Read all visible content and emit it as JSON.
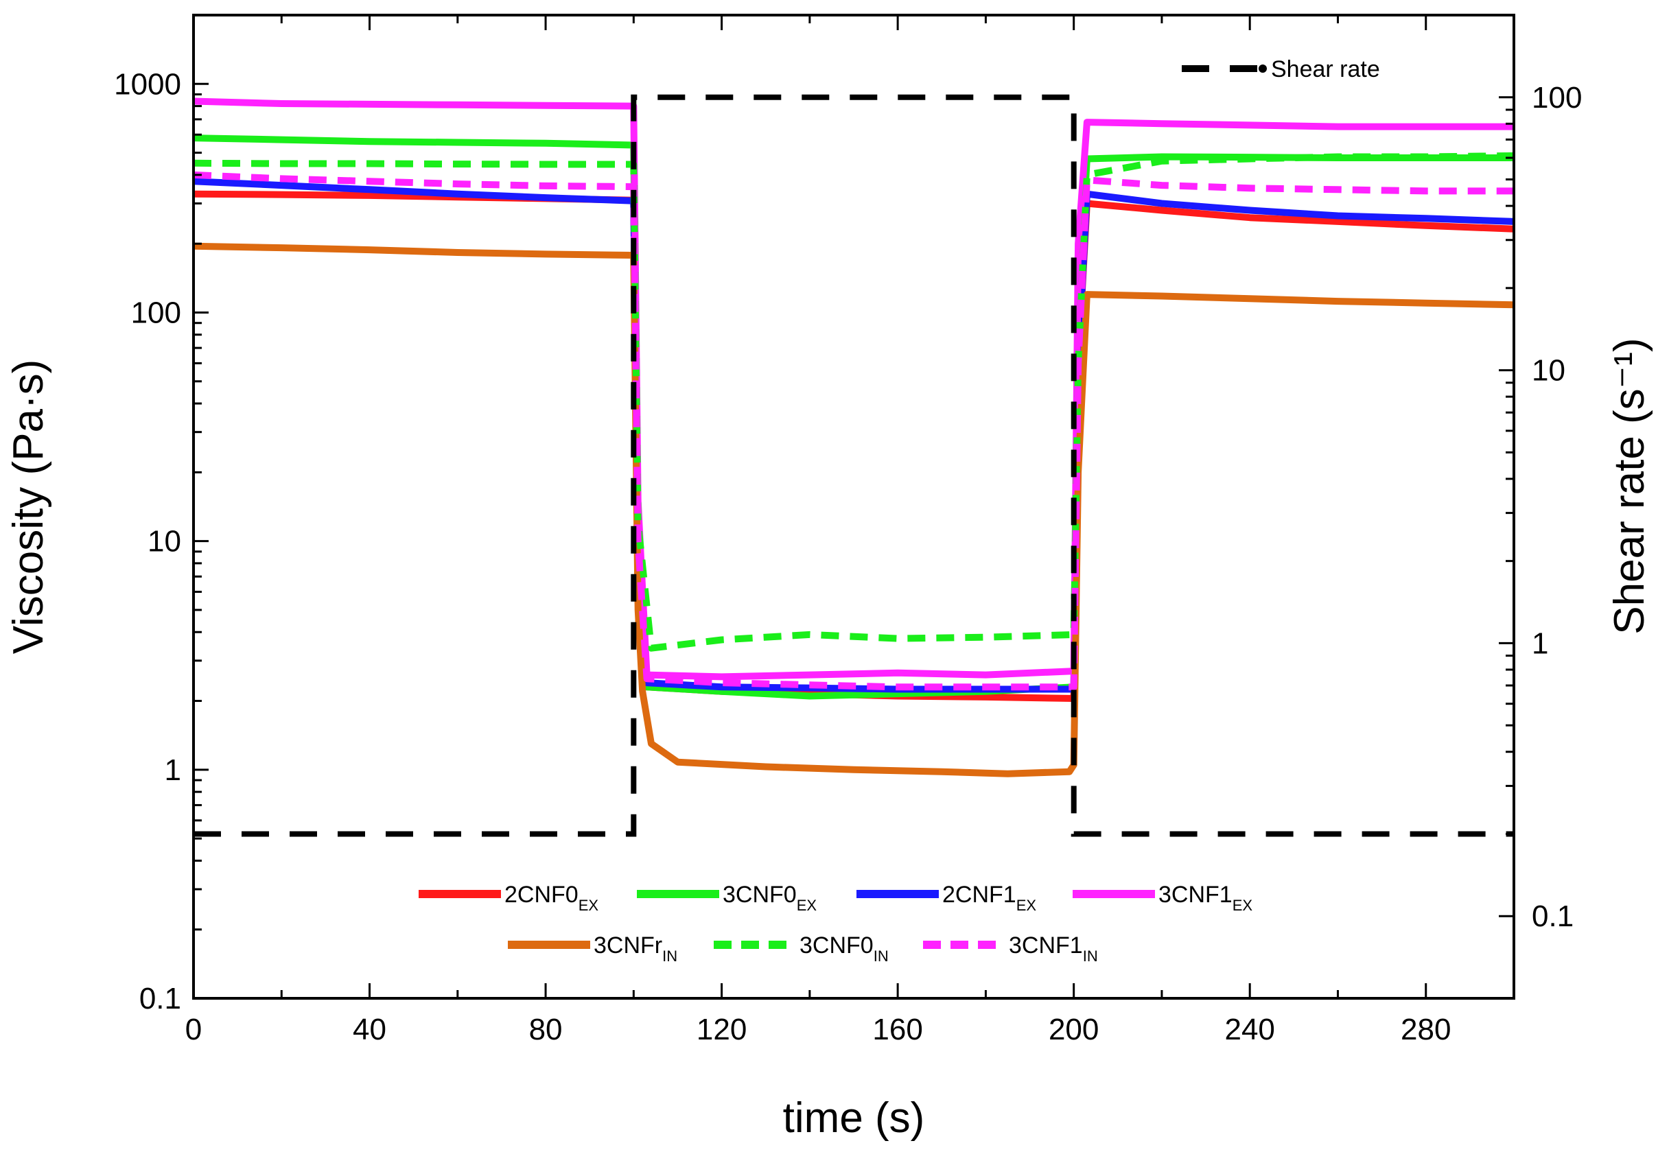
{
  "chart_data": {
    "type": "line",
    "xlabel": "time (s)",
    "ylabel": "Viscosity (Pa·s)",
    "y2label": "Shear rate (s⁻¹)",
    "xlim": [
      0,
      300
    ],
    "ylim": [
      0.1,
      2000
    ],
    "y2lim": [
      0.05,
      200
    ],
    "y_scale": "log",
    "y2_scale": "log",
    "x_ticks": [
      0,
      40,
      80,
      120,
      160,
      200,
      240,
      280
    ],
    "x_tick_labels": [
      "0",
      "40",
      "80",
      "120",
      "160",
      "200",
      "240",
      "280"
    ],
    "y_ticks": [
      0.1,
      1,
      10,
      100,
      1000
    ],
    "y_tick_labels": [
      "0.1",
      "1",
      "10",
      "100",
      "1000"
    ],
    "y2_ticks": [
      0.1,
      1,
      10,
      100
    ],
    "y2_tick_labels": [
      "0.1",
      "1",
      "10",
      "100"
    ],
    "shear_rate_legend": "Shear rate",
    "shear_rate": {
      "name": "Shear rate",
      "color": "#000000",
      "style": "dash",
      "x": [
        0,
        100,
        100,
        200,
        200,
        300
      ],
      "y": [
        0.2,
        0.2,
        100,
        100,
        0.2,
        0.2
      ]
    },
    "series": [
      {
        "name": "2CNF0",
        "sub": "EX",
        "color": "#ff1a1a",
        "style": "solid",
        "x": [
          0,
          20,
          40,
          60,
          80,
          100,
          101,
          103,
          120,
          140,
          160,
          180,
          200,
          201,
          203,
          220,
          240,
          260,
          280,
          300
        ],
        "y": [
          330,
          328,
          325,
          320,
          315,
          310,
          10,
          2.3,
          2.2,
          2.15,
          2.1,
          2.08,
          2.05,
          60,
          300,
          280,
          260,
          250,
          240,
          232
        ]
      },
      {
        "name": "3CNF0",
        "sub": "EX",
        "color": "#1aee1a",
        "style": "solid",
        "x": [
          0,
          20,
          40,
          60,
          80,
          100,
          101,
          103,
          120,
          140,
          160,
          180,
          200,
          201,
          203,
          220,
          240,
          260,
          280,
          300
        ],
        "y": [
          580,
          570,
          560,
          555,
          550,
          540,
          12,
          2.3,
          2.2,
          2.1,
          2.15,
          2.2,
          2.3,
          100,
          470,
          480,
          478,
          475,
          475,
          475
        ]
      },
      {
        "name": "2CNF1",
        "sub": "EX",
        "color": "#1a1aff",
        "style": "solid",
        "x": [
          0,
          20,
          40,
          60,
          80,
          100,
          101,
          103,
          120,
          140,
          160,
          180,
          200,
          201,
          203,
          220,
          240,
          260,
          280,
          300
        ],
        "y": [
          375,
          360,
          345,
          330,
          318,
          308,
          10,
          2.4,
          2.3,
          2.28,
          2.25,
          2.25,
          2.25,
          60,
          330,
          300,
          280,
          265,
          258,
          250
        ]
      },
      {
        "name": "3CNF1",
        "sub": "EX",
        "color": "#ff22ff",
        "style": "solid",
        "x": [
          0,
          20,
          40,
          60,
          80,
          100,
          101,
          103,
          120,
          140,
          160,
          180,
          200,
          201,
          203,
          220,
          240,
          260,
          280,
          300
        ],
        "y": [
          840,
          820,
          815,
          810,
          805,
          800,
          15,
          2.6,
          2.55,
          2.6,
          2.65,
          2.6,
          2.7,
          200,
          680,
          670,
          660,
          650,
          650,
          650
        ]
      },
      {
        "name": "3CNFr",
        "sub": "IN",
        "color": "#dd6a10",
        "style": "solid",
        "x": [
          0,
          20,
          40,
          60,
          80,
          100,
          101,
          102,
          104,
          110,
          130,
          150,
          170,
          185,
          199,
          200,
          201,
          203,
          220,
          240,
          260,
          280,
          300
        ],
        "y": [
          195,
          192,
          188,
          183,
          180,
          178,
          5,
          2.2,
          1.3,
          1.08,
          1.03,
          1.0,
          0.98,
          0.96,
          0.98,
          1.05,
          20,
          120,
          118,
          115,
          112,
          110,
          108
        ]
      },
      {
        "name": "3CNF0",
        "sub": "IN",
        "color": "#1aee1a",
        "style": "dash",
        "x": [
          0,
          20,
          40,
          60,
          80,
          100,
          101,
          104,
          120,
          140,
          160,
          180,
          200,
          201,
          203,
          220,
          240,
          260,
          280,
          300
        ],
        "y": [
          450,
          448,
          448,
          446,
          445,
          445,
          12,
          3.4,
          3.7,
          3.9,
          3.75,
          3.8,
          3.9,
          60,
          400,
          460,
          470,
          480,
          480,
          485
        ]
      },
      {
        "name": "3CNF1",
        "sub": "IN",
        "color": "#ff22ff",
        "style": "dash",
        "x": [
          0,
          20,
          40,
          60,
          80,
          100,
          101,
          103,
          120,
          140,
          160,
          180,
          200,
          201,
          203,
          220,
          240,
          260,
          280,
          300
        ],
        "y": [
          400,
          385,
          375,
          365,
          358,
          355,
          10,
          2.5,
          2.4,
          2.35,
          2.3,
          2.3,
          2.3,
          60,
          380,
          360,
          350,
          345,
          340,
          340
        ]
      }
    ]
  }
}
